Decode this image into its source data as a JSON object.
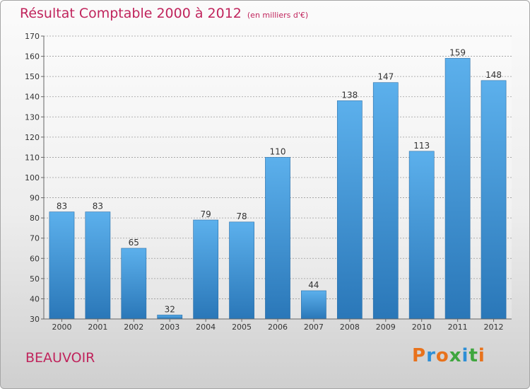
{
  "header": {
    "title": "Résultat Comptable 2000 à 2012",
    "subtitle": "(en milliers d'€)"
  },
  "footer": {
    "commune": "BEAUVOIR",
    "logo_text": "Proxiti"
  },
  "colors": {
    "title": "#c0245c",
    "bar_top": "#5cb0ec",
    "bar_bottom": "#2a77b8",
    "logo_letters": [
      "#e8721c",
      "#2e8fd6",
      "#e8721c",
      "#3fa63f",
      "#2e8fd6",
      "#3fa63f",
      "#e8721c"
    ]
  },
  "chart_data": {
    "type": "bar",
    "title": "Résultat Comptable 2000 à 2012",
    "subtitle": "(en milliers d'€)",
    "categories": [
      "2000",
      "2001",
      "2002",
      "2003",
      "2004",
      "2005",
      "2006",
      "2007",
      "2008",
      "2009",
      "2010",
      "2011",
      "2012"
    ],
    "values": [
      83,
      83,
      65,
      32,
      79,
      78,
      110,
      44,
      138,
      147,
      113,
      159,
      148
    ],
    "ylim": [
      30,
      170
    ],
    "yticks": [
      30,
      40,
      50,
      60,
      70,
      80,
      90,
      100,
      110,
      120,
      130,
      140,
      150,
      160,
      170
    ],
    "grid": true,
    "data_labels": true
  }
}
